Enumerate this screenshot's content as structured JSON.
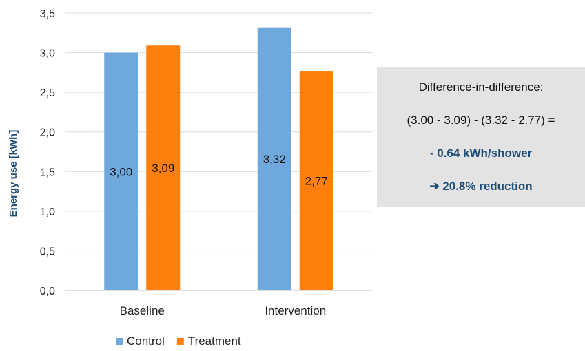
{
  "chart_data": {
    "type": "bar",
    "categories": [
      "Baseline",
      "Intervention"
    ],
    "series": [
      {
        "name": "Control",
        "color": "#6fa8dc",
        "values": [
          3.0,
          3.32
        ],
        "labels": [
          "3,00",
          "3,32"
        ]
      },
      {
        "name": "Treatment",
        "color": "#ff7f0e",
        "values": [
          3.09,
          2.77
        ],
        "labels": [
          "3,09",
          "2,77"
        ]
      }
    ],
    "ylabel": "Energy use [kWh]",
    "xlabel": "",
    "ylim": [
      0,
      3.5
    ],
    "yticks": [
      0,
      0.5,
      1.0,
      1.5,
      2.0,
      2.5,
      3.0,
      3.5
    ],
    "ytick_labels": [
      "0,0",
      "0,5",
      "1,0",
      "1,5",
      "2,0",
      "2,5",
      "3,0",
      "3,5"
    ],
    "grid": true,
    "legend_position": "bottom"
  },
  "annotation": {
    "title": "Difference-in-difference:",
    "formula": "(3.00 - 3.09) - (3.32 - 2.77) =",
    "result": "- 0.64 kWh/shower",
    "reduction": "➔ 20.8% reduction"
  }
}
